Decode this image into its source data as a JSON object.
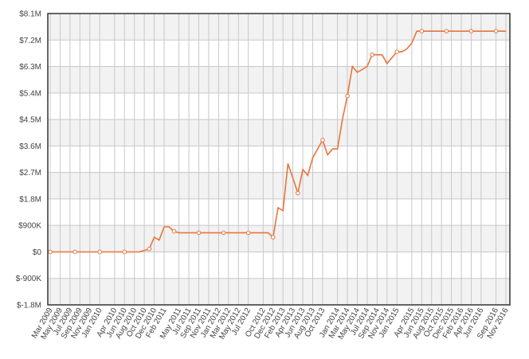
{
  "chart_data": {
    "type": "line",
    "categories": [
      "Mar 2009",
      null,
      "May 2009",
      null,
      "Jul 2009",
      null,
      "Sep 2009",
      null,
      "Nov 2009",
      null,
      "Jan 2010",
      null,
      null,
      "Apr 2010",
      null,
      "Jun 2010",
      null,
      "Aug 2010",
      null,
      "Oct 2010",
      null,
      "Dec 2010",
      null,
      "Feb 2011",
      null,
      null,
      "May 2011",
      null,
      "Jul 2011",
      null,
      "Sep 2011",
      null,
      "Nov 2011",
      null,
      "Jan 2012",
      null,
      "Mar 2012",
      null,
      "May 2012",
      null,
      "Jul 2012",
      null,
      null,
      "Oct 2012",
      null,
      "Dec 2012",
      null,
      "Feb 2013",
      null,
      "Apr 2013",
      null,
      "Jun 2013",
      null,
      "Aug 2013",
      null,
      "Oct 2013",
      null,
      null,
      "Jan 2014",
      null,
      "Mar 2014",
      null,
      "May 2014",
      null,
      "Jul 2014",
      null,
      "Sep 2014",
      null,
      "Nov 2014",
      null,
      "Jan 2015",
      null,
      null,
      "Apr 2015",
      null,
      "Jun 2015",
      null,
      "Aug 2015",
      null,
      "Oct 2015",
      null,
      "Dec 2015",
      null,
      "Feb 2016",
      null,
      "Apr 2016",
      null,
      "Jun 2016",
      null,
      null,
      "Sep 2016",
      null,
      "Nov 2016"
    ],
    "series": [
      {
        "color": "#e8743b",
        "values": [
          0,
          0,
          0,
          0,
          0,
          0,
          0,
          0,
          0,
          0,
          0,
          0,
          0,
          0,
          0,
          0,
          0,
          0,
          0,
          50000,
          100000,
          500000,
          400000,
          850000,
          850000,
          700000,
          650000,
          650000,
          650000,
          650000,
          650000,
          650000,
          650000,
          650000,
          650000,
          650000,
          650000,
          650000,
          650000,
          650000,
          650000,
          650000,
          650000,
          650000,
          650000,
          500000,
          1500000,
          1400000,
          3000000,
          2500000,
          2000000,
          2800000,
          2600000,
          3200000,
          3500000,
          3800000,
          3300000,
          3500000,
          3500000,
          4500000,
          5300000,
          6300000,
          6100000,
          6200000,
          6300000,
          6700000,
          6700000,
          6700000,
          6400000,
          6600000,
          6800000,
          6800000,
          6900000,
          7100000,
          7500000,
          7500000,
          7500000,
          7500000,
          7500000,
          7500000,
          7500000,
          7500000,
          7500000,
          7500000,
          7500000,
          7500000,
          7500000,
          7500000,
          7500000,
          7500000,
          7500000,
          7500000,
          7500000
        ]
      }
    ],
    "ylim": [
      -1800000,
      8100000
    ],
    "yticks": [
      {
        "value": -1800000,
        "label": "$-1.8M"
      },
      {
        "value": -900000,
        "label": "$-900K"
      },
      {
        "value": 0,
        "label": "$0"
      },
      {
        "value": 900000,
        "label": "$900K"
      },
      {
        "value": 1800000,
        "label": "$1.8M"
      },
      {
        "value": 2700000,
        "label": "$2.7M"
      },
      {
        "value": 3600000,
        "label": "$3.6M"
      },
      {
        "value": 4500000,
        "label": "$4.5M"
      },
      {
        "value": 5400000,
        "label": "$5.4M"
      },
      {
        "value": 6300000,
        "label": "$6.3M"
      },
      {
        "value": 7200000,
        "label": "$7.2M"
      },
      {
        "value": 8100000,
        "label": "$8.1M"
      }
    ],
    "grid": true
  }
}
